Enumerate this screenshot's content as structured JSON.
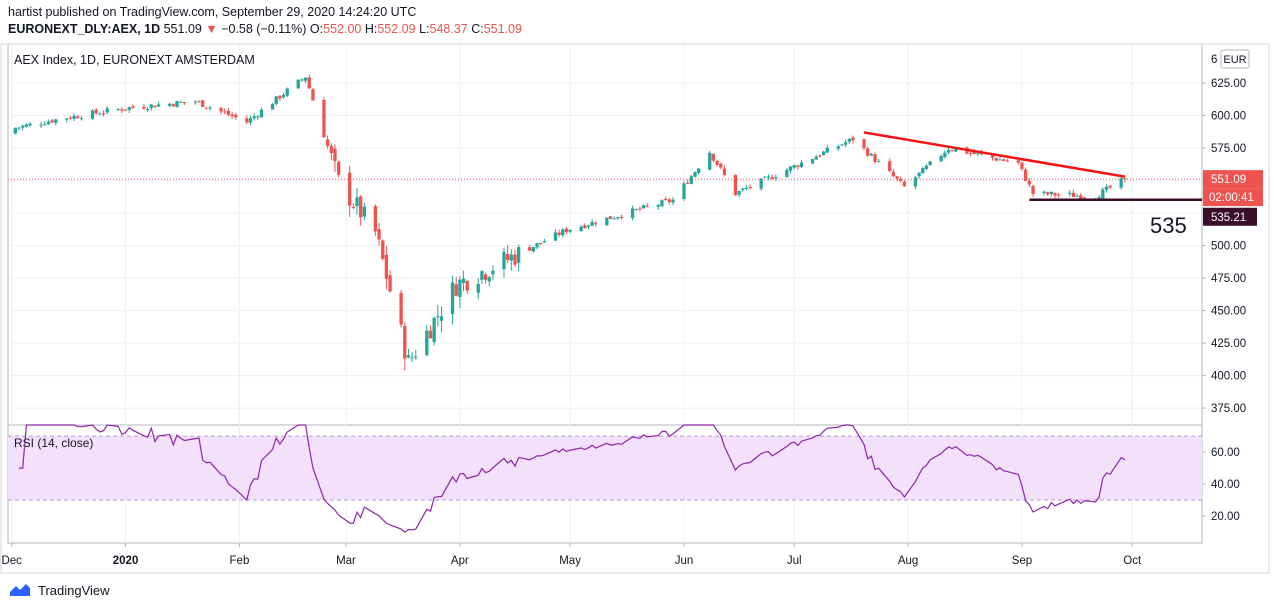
{
  "header": {
    "published_line": "hartist published on TradingView.com, September 29, 2020 14:24:20 UTC",
    "symbol": "EURONEXT_DLY:AEX, 1D",
    "last": "551.09",
    "change_arrow": "▼",
    "change": "−0.58 (−0.11%)",
    "o_label": "O:",
    "o_value": "552.00",
    "h_label": "H:",
    "h_value": "552.09",
    "l_label": "L:",
    "l_value": "548.37",
    "c_label": "C:",
    "c_value": "551.09"
  },
  "footer": {
    "brand": "TradingView"
  },
  "colors": {
    "up": "#26a69a",
    "down": "#ef5350",
    "trendline": "#f21313",
    "support": "#3b0d2a",
    "rsi_line": "#8e24aa",
    "rsi_band": "#f3e0fb"
  },
  "chart_data": [
    {
      "type": "candlestick",
      "title": "AEX Index, 1D, EURONEXT AMSTERDAM",
      "currency": "EUR",
      "ylim": [
        362,
        655
      ],
      "y_ticks": [
        "375.00",
        "400.00",
        "425.00",
        "450.00",
        "475.00",
        "500.00",
        "525.00",
        "550.00",
        "575.00",
        "600.00",
        "625.00"
      ],
      "y_tick_top_partial": "6",
      "x_labels": [
        "Dec",
        "2020",
        "Feb",
        "Mar",
        "Apr",
        "May",
        "Jun",
        "Jul",
        "Aug",
        "Sep",
        "Oct"
      ],
      "last_price_label": "551.09",
      "countdown_label": "02:00:41",
      "support_label": "535.21",
      "annotation": "535",
      "key_closes": [
        [
          "Dec 1",
          590
        ],
        [
          "Dec 15",
          598
        ],
        [
          "Jan 2",
          606
        ],
        [
          "Jan 20",
          611
        ],
        [
          "Feb 3",
          595
        ],
        [
          "Feb 19",
          630
        ],
        [
          "Feb 28",
          549
        ],
        [
          "Mar 9",
          510
        ],
        [
          "Mar 18",
          410
        ],
        [
          "Mar 31",
          470
        ],
        [
          "Apr 30",
          512
        ],
        [
          "May 29",
          535
        ],
        [
          "Jun 8",
          572
        ],
        [
          "Jun 15",
          540
        ],
        [
          "Jul 17",
          582
        ],
        [
          "Jul 31",
          545
        ],
        [
          "Aug 12",
          575
        ],
        [
          "Aug 31",
          563
        ],
        [
          "Sep 4",
          540
        ],
        [
          "Sep 21",
          538
        ],
        [
          "Sep 29",
          551
        ]
      ],
      "trendline": {
        "from": [
          "Jul 20",
          587
        ],
        "to": [
          "Sep 29",
          553
        ]
      },
      "support_line": {
        "from": [
          "Sep 3",
          535.21
        ],
        "to": [
          "Sep 29",
          535.21
        ]
      }
    },
    {
      "type": "line",
      "title": "RSI (14, close)",
      "ylim": [
        3,
        77
      ],
      "y_ticks": [
        "20.00",
        "40.00",
        "60.00"
      ],
      "band": [
        30,
        70
      ]
    }
  ]
}
